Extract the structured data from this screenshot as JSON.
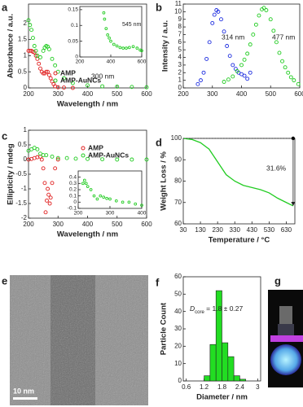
{
  "chart_data": [
    {
      "type": "scatter",
      "panel": "a",
      "xlabel": "Wavelength / nm",
      "ylabel": "Absorbance / a.u.",
      "xlim": [
        200,
        600
      ],
      "xticks": [
        200,
        300,
        400,
        500,
        600
      ],
      "ylim": [
        0,
        2.6
      ],
      "yticks": [
        0,
        0.5,
        1,
        1.5,
        2
      ],
      "legend": "lower-center",
      "series": [
        {
          "name": "AMP",
          "color": "#e02020",
          "x": [
            200,
            205,
            210,
            215,
            220,
            225,
            230,
            235,
            240,
            245,
            250,
            255,
            260,
            265,
            270,
            275,
            280,
            285,
            290,
            300,
            320,
            350
          ],
          "values": [
            1.15,
            1.15,
            1.15,
            1.12,
            1.1,
            1.0,
            0.9,
            0.75,
            0.6,
            0.5,
            0.45,
            0.45,
            0.5,
            0.5,
            0.4,
            0.3,
            0.2,
            0.12,
            0.05,
            0.02,
            0.01,
            0
          ]
        },
        {
          "name": "AMP-AuNCs",
          "color": "#22cc22",
          "x": [
            200,
            205,
            210,
            215,
            220,
            225,
            230,
            240,
            250,
            255,
            260,
            265,
            270,
            280,
            290,
            300,
            320,
            350,
            400,
            450,
            500,
            550,
            600
          ],
          "values": [
            2.1,
            1.95,
            1.8,
            1.55,
            1.3,
            1.15,
            1.0,
            0.95,
            1.15,
            1.25,
            1.3,
            1.28,
            1.2,
            0.9,
            0.7,
            0.5,
            0.3,
            0.15,
            0.08,
            0.05,
            0.04,
            0.03,
            0.02
          ]
        }
      ],
      "annotations": [
        "300 nm"
      ],
      "inset": {
        "type": "scatter",
        "xlim": [
          200,
          600
        ],
        "xticks": [
          200,
          400,
          600
        ],
        "ylim": [
          0,
          0.16
        ],
        "yticks": [
          0,
          0.05,
          0.1,
          0.15
        ],
        "series": [
          {
            "color": "#22cc22",
            "x": [
              355,
              360,
              370,
              380,
              390,
              400,
              420,
              440,
              460,
              480,
              500,
              520,
              545,
              570,
              590,
              600
            ],
            "values": [
              0.14,
              0.12,
              0.09,
              0.07,
              0.06,
              0.05,
              0.04,
              0.035,
              0.03,
              0.028,
              0.028,
              0.03,
              0.033,
              0.028,
              0.022,
              0.02
            ]
          }
        ],
        "annotations": [
          "545 nm"
        ]
      }
    },
    {
      "type": "scatter",
      "panel": "b",
      "ylabel": "Intensity / a.u.",
      "xlim": [
        200,
        600
      ],
      "xticks": [
        200,
        300,
        400,
        500,
        600
      ],
      "ylim": [
        0,
        11
      ],
      "yticks": [
        0,
        1,
        2,
        3,
        4,
        5,
        6,
        7,
        8,
        9,
        10,
        11
      ],
      "series": [
        {
          "color": "#2030e0",
          "x": [
            250,
            260,
            270,
            280,
            290,
            300,
            307,
            314,
            320,
            330,
            340,
            350,
            360,
            370,
            380,
            390,
            400,
            410,
            420,
            430
          ],
          "values": [
            0.5,
            1.0,
            2.0,
            3.8,
            6.0,
            8.5,
            9.6,
            10.2,
            10.0,
            9.0,
            7.4,
            5.5,
            4.2,
            3.0,
            2.5,
            2.0,
            1.8,
            1.6,
            1.2,
            2.0
          ]
        },
        {
          "color": "#22cc22",
          "x": [
            340,
            355,
            370,
            385,
            400,
            410,
            420,
            430,
            440,
            450,
            460,
            470,
            477,
            485,
            500,
            510,
            520,
            530,
            540,
            550,
            560,
            570,
            580,
            595
          ],
          "values": [
            0.8,
            1.1,
            1.5,
            2.2,
            3.0,
            3.7,
            4.5,
            5.7,
            7.0,
            8.3,
            9.5,
            10.3,
            10.5,
            10.2,
            9.0,
            7.5,
            6.0,
            4.6,
            3.5,
            2.7,
            2.0,
            1.4,
            1.0,
            0.5
          ]
        }
      ],
      "annotations": [
        "314 nm",
        "477 nm"
      ]
    },
    {
      "type": "scatter",
      "panel": "c",
      "xlabel": "Wavelength / nm",
      "ylabel": "Ellipticity / mdeg",
      "xlim": [
        200,
        600
      ],
      "xticks": [
        200,
        300,
        400,
        500,
        600
      ],
      "ylim": [
        -2,
        1
      ],
      "yticks": [
        -2,
        -1.5,
        -1,
        -0.5,
        0,
        0.5,
        1
      ],
      "legend": "upper-right",
      "series": [
        {
          "name": "AMP",
          "color": "#e02020",
          "x": [
            200,
            210,
            220,
            230,
            240,
            245,
            250,
            255,
            258,
            262,
            265,
            268,
            272,
            275,
            280,
            290,
            300
          ],
          "values": [
            0,
            0.02,
            0.05,
            0.08,
            0.1,
            0,
            -0.3,
            -0.8,
            -1.8,
            -1.4,
            -1.0,
            -1.2,
            -1.5,
            -1.3,
            -0.8,
            -0.3,
            0
          ]
        },
        {
          "name": "AMP-AuNCs",
          "color": "#22cc22",
          "x": [
            200,
            210,
            220,
            230,
            240,
            250,
            260,
            280,
            300,
            330,
            360,
            400,
            450,
            500,
            550,
            600
          ],
          "values": [
            0.3,
            0.35,
            0.4,
            0.35,
            0.2,
            0.15,
            0.15,
            0.1,
            0.05,
            0.05,
            0.03,
            0.02,
            0.01,
            0,
            0,
            0
          ]
        }
      ],
      "inset": {
        "type": "scatter",
        "xlim": [
          200,
          400
        ],
        "xticks": [
          200,
          300,
          400
        ],
        "ylim": [
          -0.1,
          0.5
        ],
        "yticks": [
          -0.1,
          0,
          0.1,
          0.2,
          0.3,
          0.4
        ],
        "series": [
          {
            "color": "#22cc22",
            "x": [
              215,
              220,
              225,
              230,
              240,
              250,
              260,
              270,
              280,
              290,
              300,
              320,
              340,
              360,
              380,
              400
            ],
            "values": [
              0.3,
              0.35,
              0.3,
              0.25,
              0.2,
              0.1,
              0.05,
              0.1,
              0.08,
              0.06,
              0.05,
              0.02,
              0.0,
              0.0,
              -0.03,
              -0.05
            ]
          }
        ]
      }
    },
    {
      "type": "line",
      "panel": "d",
      "xlabel": "Temperature / °C",
      "ylabel": "Weight Loss / %",
      "color": "#22cc22",
      "xlim": [
        30,
        680
      ],
      "xticks": [
        30,
        130,
        230,
        330,
        430,
        530,
        630
      ],
      "ylim": [
        60,
        100
      ],
      "yticks": [
        60,
        70,
        80,
        90,
        100
      ],
      "series": [
        {
          "color": "#22cc22",
          "x": [
            30,
            80,
            130,
            180,
            230,
            280,
            330,
            380,
            430,
            480,
            530,
            580,
            630,
            670
          ],
          "values": [
            100,
            99.5,
            98,
            95,
            89,
            83,
            80,
            78,
            77,
            76,
            74.5,
            72,
            70,
            68.4
          ]
        }
      ],
      "annotations": [
        "31.6%"
      ]
    },
    {
      "type": "histogram",
      "panel": "f",
      "xlabel": "Diameter / nm",
      "ylabel": "Particle Count",
      "color": "#22dd22",
      "xlim": [
        0.5,
        3.1
      ],
      "xticks": [
        0.6,
        1.2,
        1.8,
        2.4,
        3
      ],
      "ylim": [
        0,
        60
      ],
      "yticks": [
        0,
        10,
        20,
        30,
        40,
        50,
        60
      ],
      "bins": [
        1.2,
        1.4,
        1.6,
        1.8,
        2.0,
        2.2,
        2.4,
        2.6
      ],
      "counts": [
        3,
        21,
        52,
        22,
        14,
        3,
        1
      ],
      "note": {
        "symbol": "D",
        "subscript": "core",
        "text": " = 1.8 ± 0.27"
      }
    }
  ],
  "images": [
    {
      "panel": "e",
      "scale_bar": "10 nm"
    },
    {
      "panel": "g"
    }
  ]
}
